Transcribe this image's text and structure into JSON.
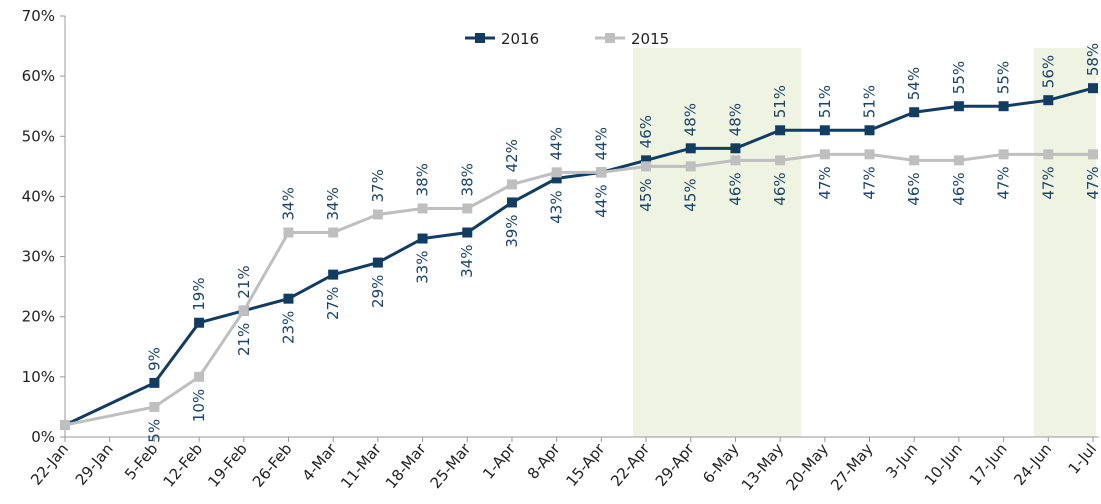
{
  "chart_data": {
    "type": "line",
    "categories": [
      "22-Jan",
      "29-Jan",
      "5-Feb",
      "12-Feb",
      "19-Feb",
      "26-Feb",
      "4-Mar",
      "11-Mar",
      "18-Mar",
      "25-Mar",
      "1-Apr",
      "8-Apr",
      "15-Apr",
      "22-Apr",
      "29-Apr",
      "6-May",
      "13-May",
      "20-May",
      "27-May",
      "3-Jun",
      "10-Jun",
      "17-Jun",
      "24-Jun",
      "1-Jul"
    ],
    "series": [
      {
        "name": "2016",
        "color": "#123d63",
        "values": [
          2,
          null,
          9,
          19,
          21,
          23,
          27,
          29,
          33,
          34,
          39,
          43,
          44,
          46,
          48,
          48,
          51,
          51,
          51,
          54,
          55,
          55,
          56,
          58
        ],
        "value_labels": [
          null,
          null,
          "9%",
          "19%",
          "21%",
          "23%",
          "27%",
          "29%",
          "33%",
          "34%",
          "39%",
          "43%",
          "44%",
          "46%",
          "48%",
          "48%",
          "51%",
          "51%",
          "51%",
          "54%",
          "55%",
          "55%",
          "56%",
          "58%"
        ]
      },
      {
        "name": "2015",
        "color": "#bfbfbf",
        "values": [
          2,
          null,
          5,
          10,
          21,
          34,
          34,
          37,
          38,
          38,
          42,
          44,
          44,
          45,
          45,
          46,
          46,
          47,
          47,
          46,
          46,
          47,
          47,
          47
        ],
        "value_labels": [
          null,
          null,
          "5%",
          "10%",
          "21%",
          "34%",
          "34%",
          "37%",
          "38%",
          "38%",
          "42%",
          "44%",
          "44%",
          "45%",
          "45%",
          "46%",
          "46%",
          "47%",
          "47%",
          "46%",
          "46%",
          "47%",
          "47%",
          "47%"
        ]
      }
    ],
    "ylim": [
      0,
      70
    ],
    "yticks": [
      {
        "value": 0,
        "label": "0%"
      },
      {
        "value": 10,
        "label": "10%"
      },
      {
        "value": 20,
        "label": "20%"
      },
      {
        "value": 30,
        "label": "30%"
      },
      {
        "value": 40,
        "label": "40%"
      },
      {
        "value": 50,
        "label": "50%"
      },
      {
        "value": 60,
        "label": "60%"
      },
      {
        "value": 70,
        "label": "70%"
      }
    ],
    "connect_gaps": true,
    "legend": "top"
  }
}
